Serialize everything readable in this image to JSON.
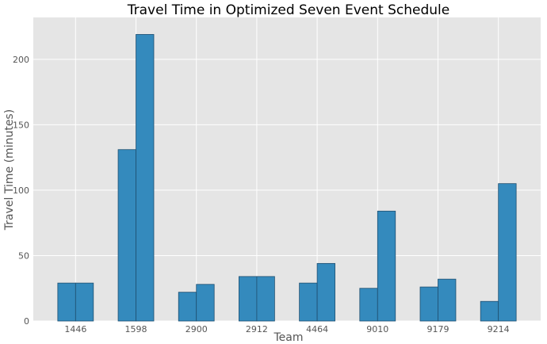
{
  "chart_data": {
    "type": "bar",
    "title": "Travel Time in Optimized Seven Event Schedule",
    "xlabel": "Team",
    "ylabel": "Travel Time (minutes)",
    "categories": [
      "1446",
      "1598",
      "2900",
      "2912",
      "4464",
      "9010",
      "9179",
      "9214"
    ],
    "series": [
      {
        "values": [
          29,
          131,
          22,
          34,
          29,
          25,
          26,
          15
        ]
      },
      {
        "values": [
          29,
          219,
          28,
          34,
          44,
          84,
          32,
          105
        ]
      }
    ],
    "ylim": [
      0,
      232
    ],
    "yticks": [
      0,
      50,
      100,
      150,
      200
    ],
    "grid": true,
    "colors": {
      "bar": "#348ABD",
      "bar_edge": "#1f4f70",
      "background": "#E5E5E5",
      "grid": "#ffffff"
    }
  }
}
